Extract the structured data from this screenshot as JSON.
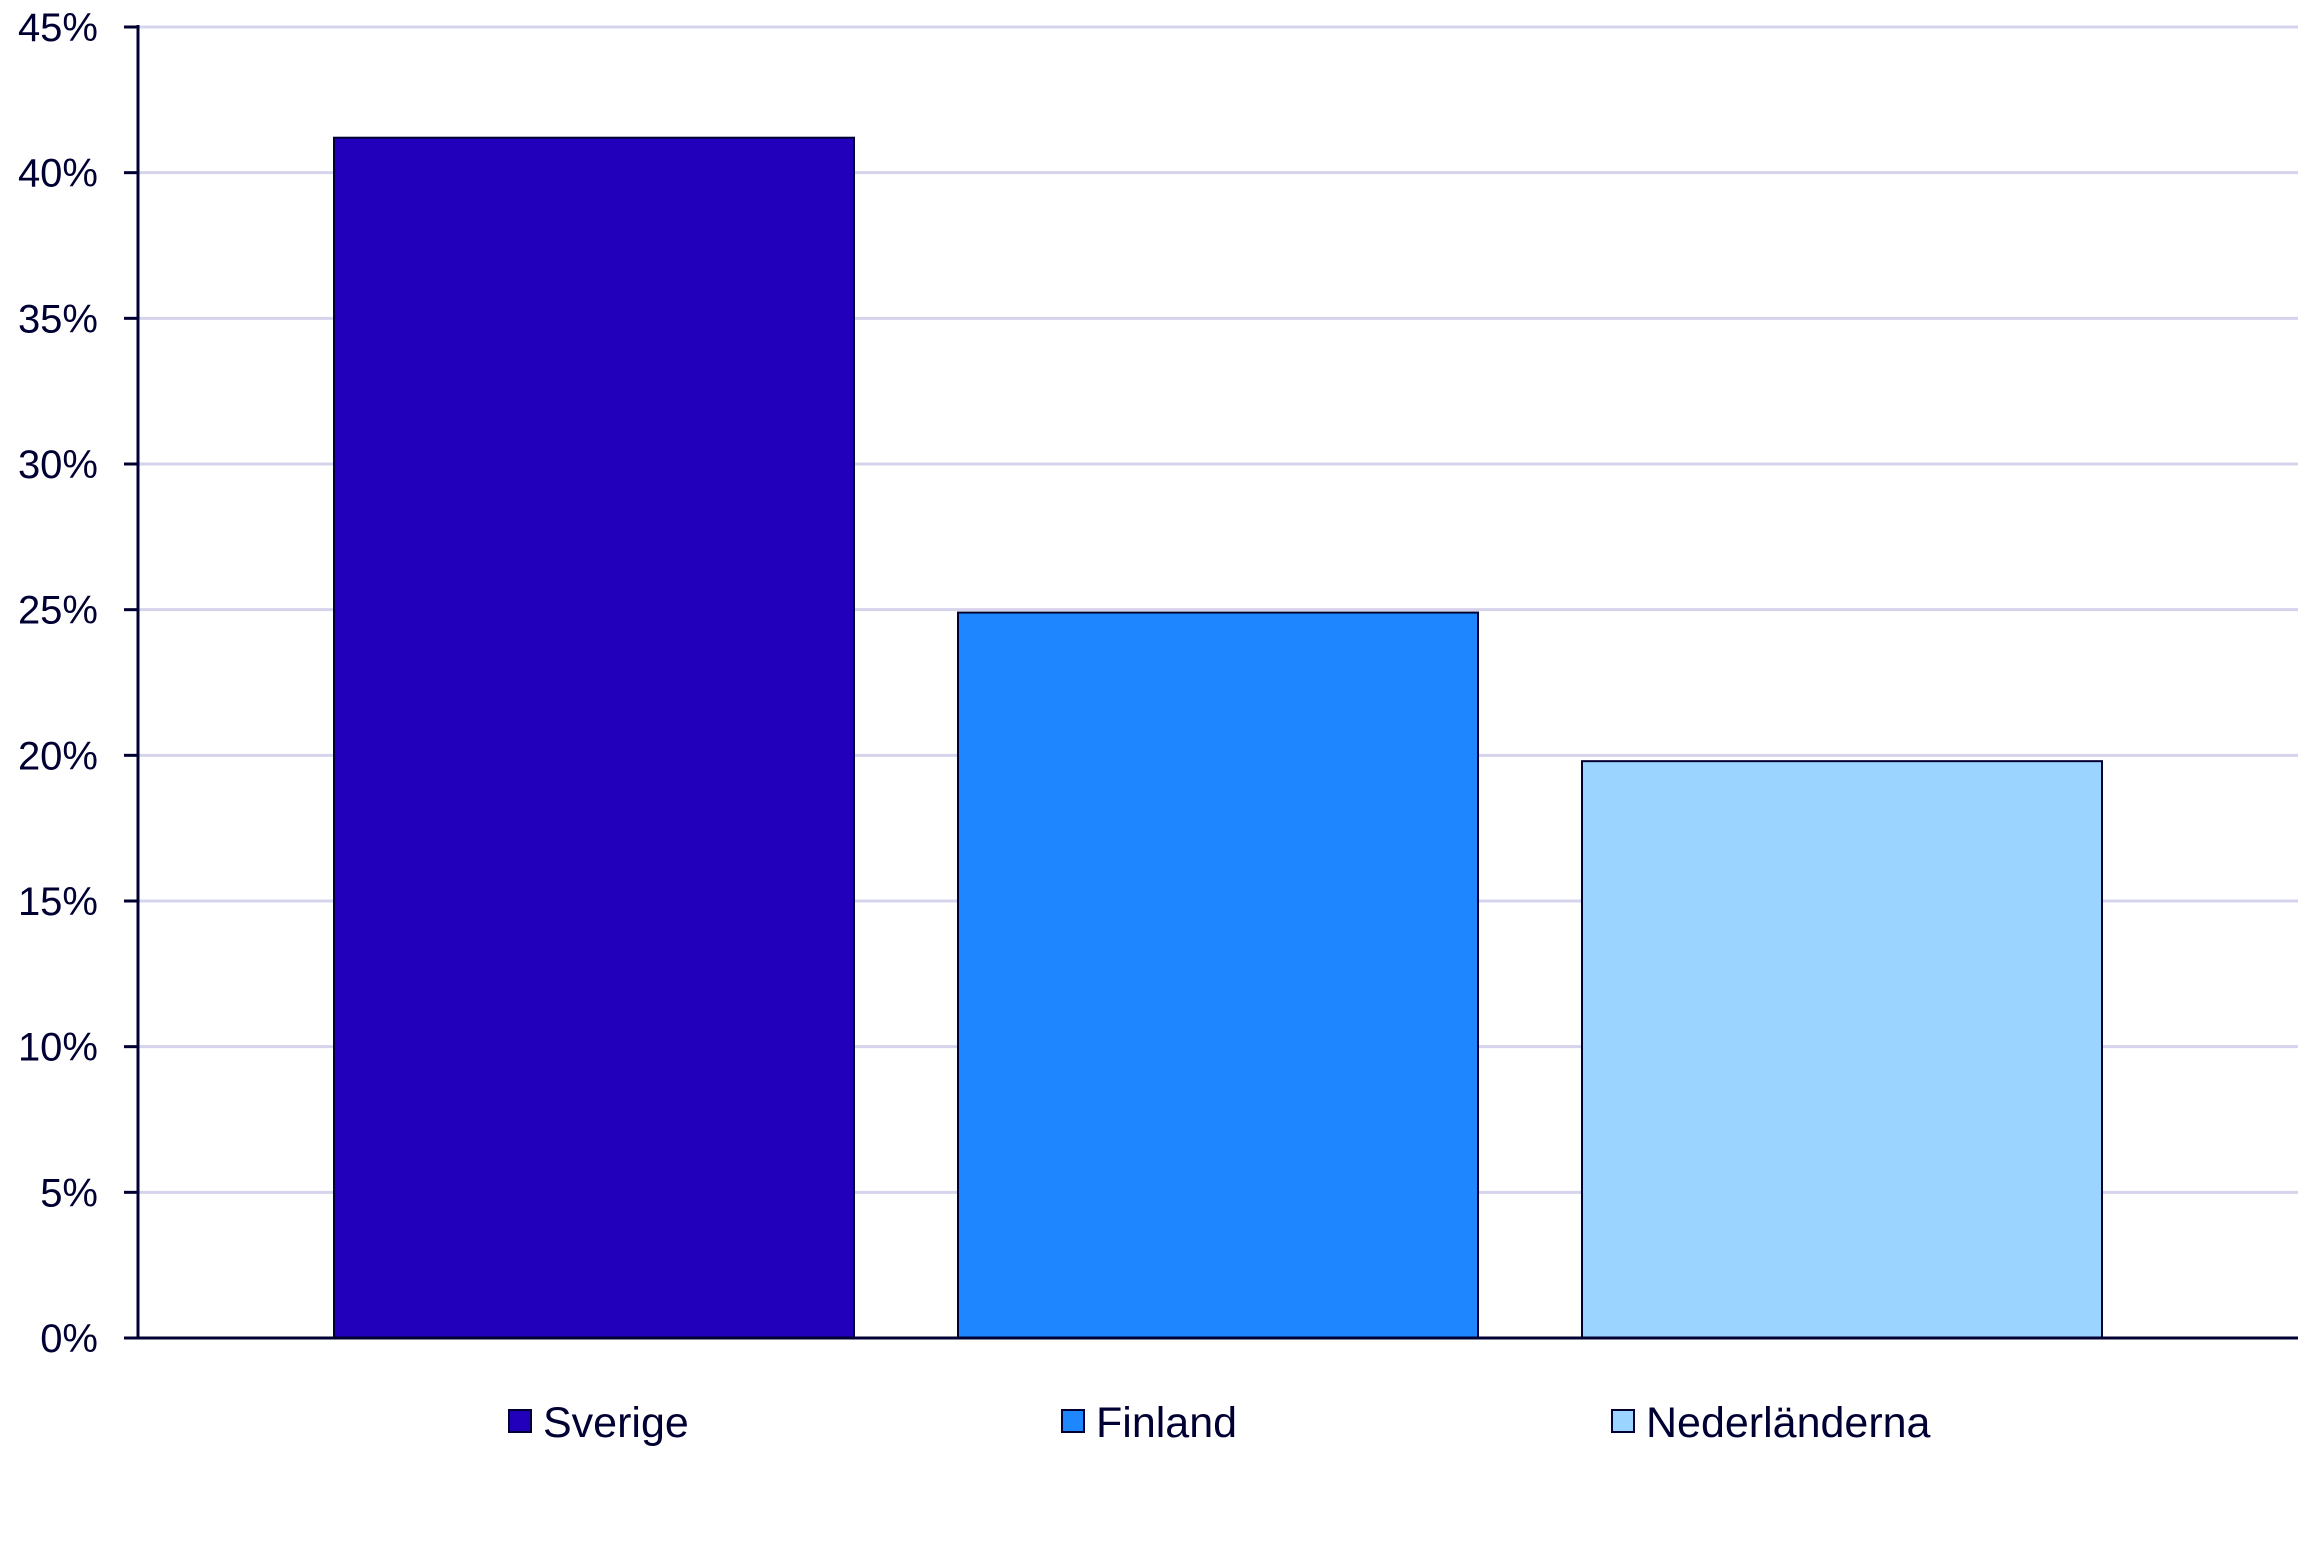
{
  "chart_data": {
    "type": "bar",
    "categories": [
      "Sverige",
      "Finland",
      "Nederländerna"
    ],
    "values": [
      41.2,
      24.9,
      19.8
    ],
    "colors": [
      "#2200BB",
      "#1E86FF",
      "#9BD5FF"
    ],
    "title": "",
    "xlabel": "",
    "ylabel": "",
    "ylim": [
      0,
      45
    ],
    "ytick_step": 5,
    "ytick_labels": [
      "0%",
      "5%",
      "10%",
      "15%",
      "20%",
      "25%",
      "30%",
      "35%",
      "40%",
      "45%"
    ],
    "grid": true,
    "grid_color": "#D6D3EC",
    "bar_border_color": "#000033",
    "axis_color": "#000033",
    "legend": {
      "position": "bottom",
      "entries": [
        "Sverige",
        "Finland",
        "Nederländerna"
      ]
    }
  }
}
